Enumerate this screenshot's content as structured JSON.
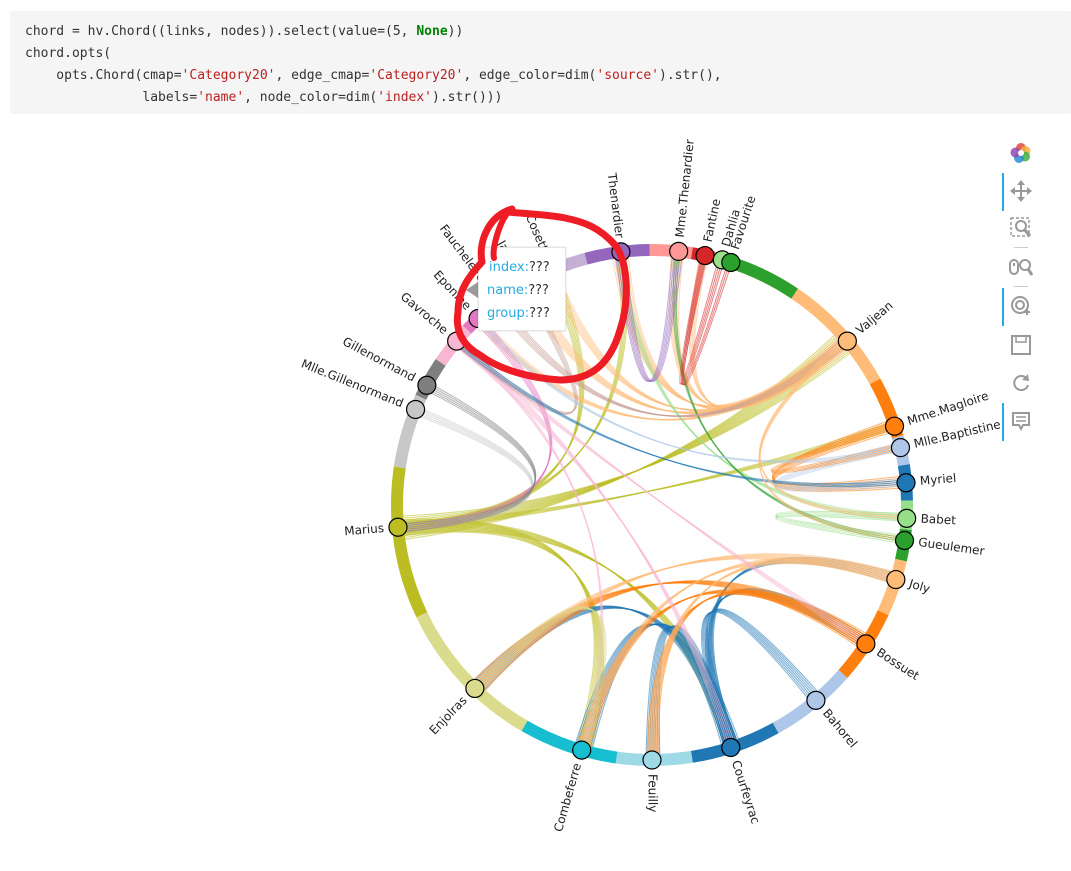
{
  "code": {
    "line1": {
      "a": "chord = hv.Chord((links, nodes)).select(value=(5, ",
      "kw": "None",
      "b": "))"
    },
    "line2": {
      "a": "chord.opts("
    },
    "line3": {
      "a": "    opts.Chord(cmap=",
      "s1": "'Category20'",
      "b": ", edge_cmap=",
      "s2": "'Category20'",
      "c": ", edge_color=dim(",
      "s3": "'source'",
      "d": ").str(),"
    },
    "line4": {
      "a": "               labels=",
      "s1": "'name'",
      "b": ", node_color=dim(",
      "s2": "'index'",
      "c": ").str()))"
    }
  },
  "toolbar": {
    "tools": [
      {
        "name": "bokeh-logo-icon"
      },
      {
        "name": "pan-icon",
        "active": true
      },
      {
        "name": "box-zoom-icon"
      },
      {
        "name": "wheel-zoom-icon"
      },
      {
        "name": "tap-icon",
        "active": true
      },
      {
        "name": "save-icon"
      },
      {
        "name": "reset-icon"
      },
      {
        "name": "hover-icon",
        "active": true
      }
    ]
  },
  "tooltip": {
    "index_key": "index:",
    "index_val": "???",
    "name_key": "name:",
    "name_val": "???",
    "group_key": "group:",
    "group_val": "???"
  },
  "chart_data": {
    "type": "chord",
    "nodes": [
      {
        "name": "Valjean",
        "color": "#ffbb78"
      },
      {
        "name": "Mme.Magloire",
        "color": "#ff7f0e"
      },
      {
        "name": "Mlle.Baptistine",
        "color": "#aec7e8"
      },
      {
        "name": "Myriel",
        "color": "#1f77b4"
      },
      {
        "name": "Babet",
        "color": "#98df8a"
      },
      {
        "name": "Gueulemer",
        "color": "#2ca02c"
      },
      {
        "name": "Joly",
        "color": "#ffbb78"
      },
      {
        "name": "Bossuet",
        "color": "#ff7f0e"
      },
      {
        "name": "Bahorel",
        "color": "#aec7e8"
      },
      {
        "name": "Courfeyrac",
        "color": "#1f77b4"
      },
      {
        "name": "Feuilly",
        "color": "#9edae5"
      },
      {
        "name": "Combeferre",
        "color": "#17becf"
      },
      {
        "name": "Enjolras",
        "color": "#dbdb8d"
      },
      {
        "name": "Marius",
        "color": "#bcbd22"
      },
      {
        "name": "Mlle.Gillenormand",
        "color": "#c7c7c7"
      },
      {
        "name": "Gillenormand",
        "color": "#7f7f7f"
      },
      {
        "name": "Gavroche",
        "color": "#f7b6d2"
      },
      {
        "name": "Eponine",
        "color": "#e377c2"
      },
      {
        "name": "Fauchelevent",
        "color": "#c49c94"
      },
      {
        "name": "Javert",
        "color": "#c49c94"
      },
      {
        "name": "Cosette",
        "color": "#c5b0d5"
      },
      {
        "name": "Thenardier",
        "color": "#9467bd"
      },
      {
        "name": "Mme.Thenardier",
        "color": "#ff9896"
      },
      {
        "name": "Fantine",
        "color": "#d62728"
      },
      {
        "name": "Dahlia",
        "color": "#98df8a"
      },
      {
        "name": "Favourite",
        "color": "#2ca02c"
      }
    ]
  }
}
